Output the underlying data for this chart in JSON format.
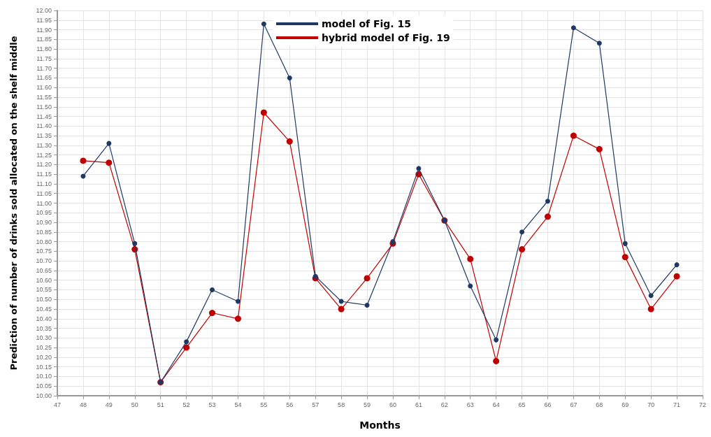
{
  "chart_data": {
    "type": "line",
    "xlabel": "Months",
    "ylabel": "Prediction of number of drinks sold allocated on the shelf middle",
    "x": [
      48,
      49,
      50,
      51,
      52,
      53,
      54,
      55,
      56,
      57,
      58,
      59,
      60,
      61,
      62,
      63,
      64,
      65,
      66,
      67,
      68,
      69,
      70,
      71
    ],
    "series": [
      {
        "name": "model of Fig. 15",
        "color": "#1f3864",
        "values": [
          11.14,
          11.31,
          10.79,
          10.07,
          10.28,
          10.55,
          10.49,
          11.93,
          11.65,
          10.62,
          10.49,
          10.47,
          10.8,
          11.18,
          10.91,
          10.57,
          10.29,
          10.85,
          11.01,
          11.91,
          11.83,
          10.79,
          10.52,
          10.68
        ]
      },
      {
        "name": "hybrid model of Fig. 19",
        "color": "#c00000",
        "values": [
          11.22,
          11.21,
          10.76,
          10.07,
          10.25,
          10.43,
          10.4,
          11.47,
          11.32,
          10.61,
          10.45,
          10.61,
          10.79,
          11.15,
          10.91,
          10.71,
          10.18,
          10.76,
          10.93,
          11.35,
          11.28,
          10.72,
          10.45,
          10.62
        ]
      }
    ],
    "xlim": [
      47,
      72
    ],
    "xticks": [
      47,
      48,
      49,
      50,
      51,
      52,
      53,
      54,
      55,
      56,
      57,
      58,
      59,
      60,
      61,
      62,
      63,
      64,
      65,
      66,
      67,
      68,
      69,
      70,
      71,
      72
    ],
    "ylim": [
      10,
      12
    ],
    "yticks": [
      {
        "value": 10,
        "label": "10.00"
      },
      10.05,
      {
        "value": 10.1,
        "label": "10.10"
      },
      10.15,
      {
        "value": 10.2,
        "label": "10.20"
      },
      10.25,
      {
        "value": 10.3,
        "label": "10.30"
      },
      10.35,
      {
        "value": 10.4,
        "label": "10.40"
      },
      10.45,
      {
        "value": 10.5,
        "label": "10.50"
      },
      10.55,
      {
        "value": 10.6,
        "label": "10.60"
      },
      10.65,
      {
        "value": 10.7,
        "label": "10.70"
      },
      10.75,
      {
        "value": 10.8,
        "label": "10.80"
      },
      10.85,
      {
        "value": 10.9,
        "label": "10.90"
      },
      10.95,
      {
        "value": 11,
        "label": "11.00"
      },
      11.05,
      {
        "value": 11.1,
        "label": "11.10"
      },
      11.15,
      {
        "value": 11.2,
        "label": "11.20"
      },
      11.25,
      {
        "value": 11.3,
        "label": "11.30"
      },
      11.35,
      {
        "value": 11.4,
        "label": "11.40"
      },
      11.45,
      {
        "value": 11.5,
        "label": "11.50"
      },
      11.55,
      {
        "value": 11.6,
        "label": "11.60"
      },
      11.65,
      {
        "value": 11.7,
        "label": "11.70"
      },
      11.75,
      {
        "value": 11.8,
        "label": "11.80"
      },
      11.85,
      {
        "value": 11.9,
        "label": "11.90"
      },
      11.95,
      {
        "value": 12,
        "label": "12.00"
      }
    ],
    "grid": true,
    "legend": "top",
    "marker": "circle",
    "line_style": "solid"
  }
}
